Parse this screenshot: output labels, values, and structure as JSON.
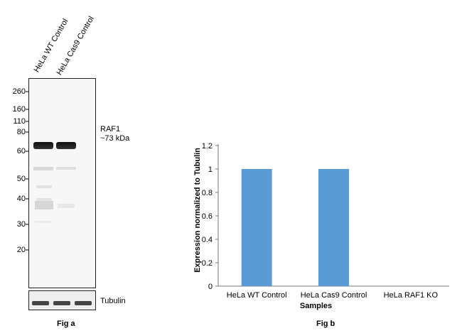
{
  "fig_a": {
    "lanes": [
      "HeLa WT Control",
      "HeLa Cas9 Control"
    ],
    "mw_markers": [
      "260",
      "160",
      "110",
      "80",
      "60",
      "50",
      "40",
      "30",
      "20"
    ],
    "target_name": "RAF1",
    "target_size": "~73 kDa",
    "loading_control": "Tubulin",
    "caption": "Fig a"
  },
  "fig_b": {
    "caption": "Fig b"
  },
  "chart_data": {
    "type": "bar",
    "categories": [
      "HeLa WT Control",
      "HeLa Cas9 Control",
      "HeLa RAF1 KO"
    ],
    "values": [
      1,
      1,
      0
    ],
    "ylabel": "Expression normalized to Tubulin",
    "xlabel": "Samples",
    "ylim": [
      0,
      1.2
    ],
    "yticks": [
      "0",
      "0.2",
      "0.4",
      "0.6",
      "0.8",
      "1",
      "1.2"
    ],
    "grid": false,
    "bar_color": "#5b9bd5"
  }
}
